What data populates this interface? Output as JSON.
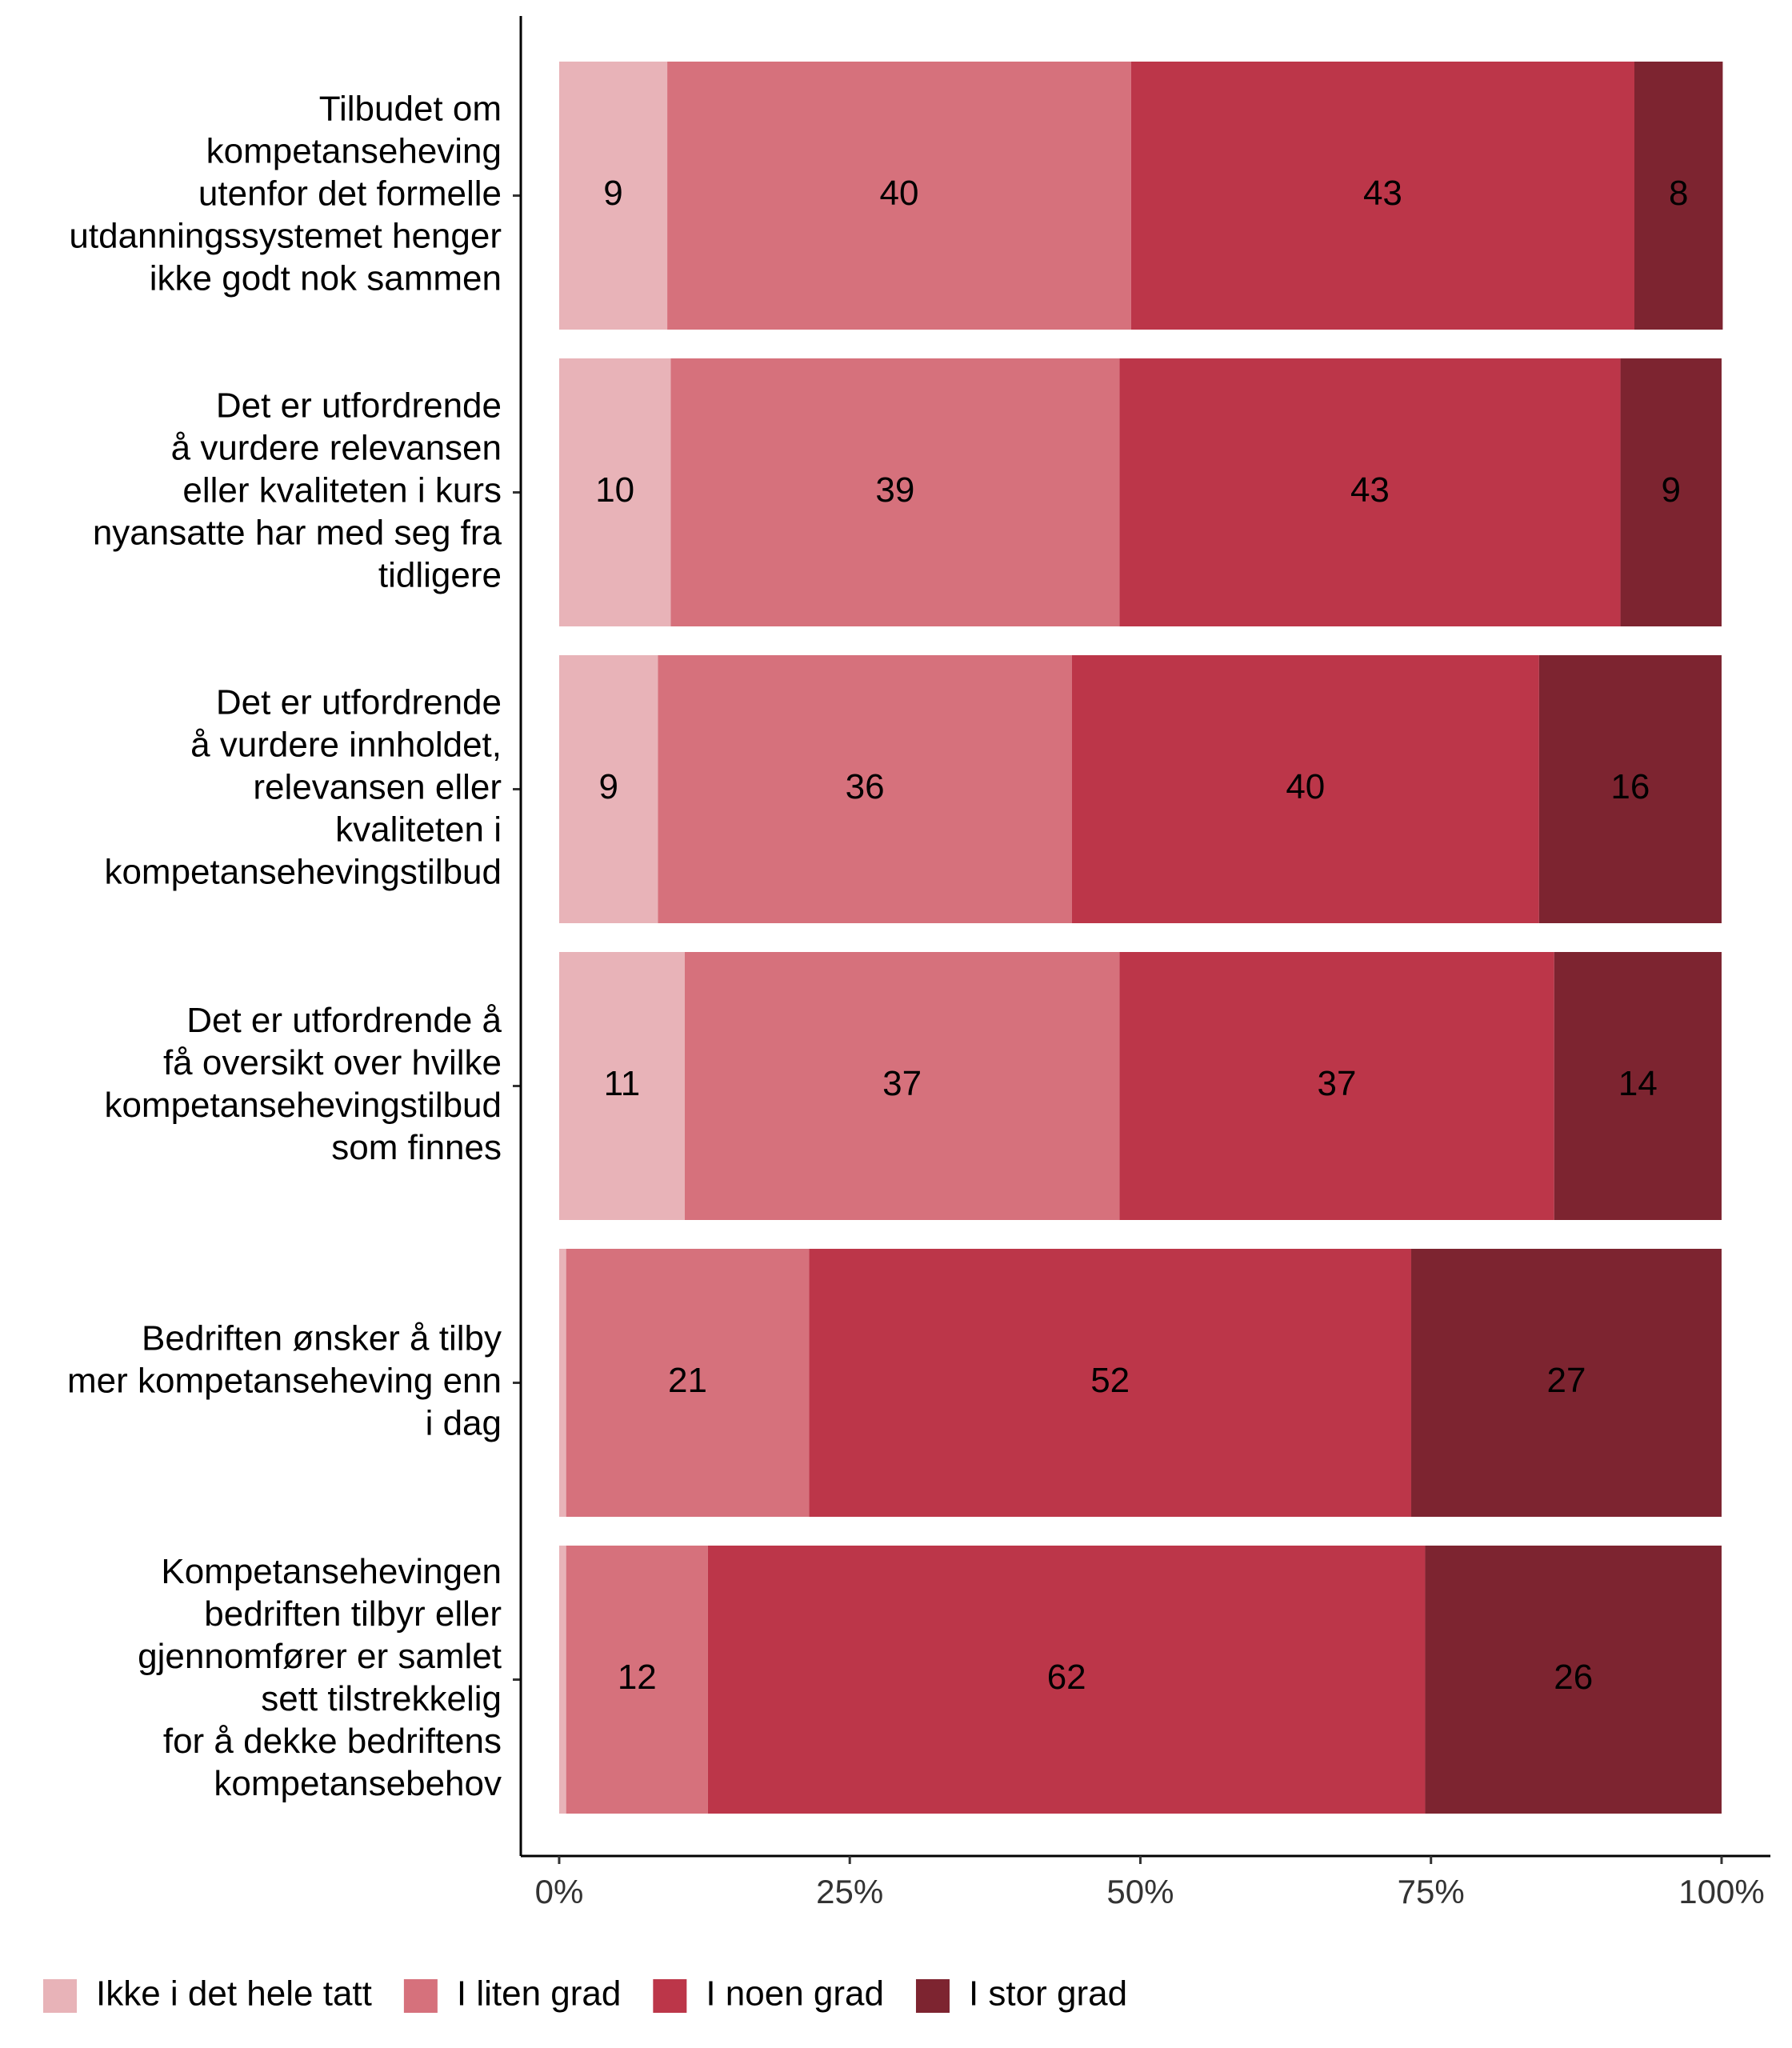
{
  "chart_data": {
    "type": "stacked-bar-horizontal",
    "categories": [
      "Tilbudet om\nkompetanseheving\nutenfor det formelle\nutdanningssystemet henger\nikke godt nok sammen",
      "Det er utfordrende\nå vurdere relevansen\neller kvaliteten i kurs\nnyansatte har med seg fra\ntidligere",
      "Det er utfordrende\nå vurdere innholdet,\nrelevansen eller\nkvaliteten i\nkompetansehevingstilbud",
      "Det er utfordrende å\nfå oversikt over hvilke\nkompetansehevingstilbud\nsom finnes",
      "Bedriften ønsker å tilby\nmer kompetanseheving enn\ni dag",
      "Kompetansehevingen\nbedriften tilbyr eller\ngjennomfører er samlet\nsett tilstrekkelig\nfor å dekke bedriftens\nkompetansebehov"
    ],
    "series": [
      {
        "name": "Ikke i det hele tatt",
        "color": "#e8b3b8",
        "label_color": "#000000",
        "values": [
          9.3,
          9.6,
          8.5,
          10.8,
          0.6,
          0.6
        ],
        "value_labels": [
          "9",
          "10",
          "9",
          "11",
          null,
          null
        ]
      },
      {
        "name": "I liten grad",
        "color": "#d6717c",
        "label_color": "#000000",
        "values": [
          39.9,
          38.6,
          35.6,
          37.4,
          20.9,
          12.2
        ],
        "value_labels": [
          "40",
          "39",
          "36",
          "37",
          "21",
          "12"
        ]
      },
      {
        "name": "I noen grad",
        "color": "#bc3649",
        "label_color": "#ffffff",
        "values": [
          43.3,
          43.1,
          40.2,
          37.4,
          51.8,
          61.7
        ],
        "value_labels": [
          "43",
          "43",
          "40",
          "37",
          "52",
          "62"
        ]
      },
      {
        "name": "I stor grad",
        "color": "#7d2430",
        "label_color": "#ffffff",
        "values": [
          7.6,
          8.7,
          15.7,
          14.4,
          26.7,
          25.5
        ],
        "value_labels": [
          "8",
          "9",
          "16",
          "14",
          "27",
          "26"
        ]
      }
    ],
    "xlim": [
      -3.3,
      104.2
    ],
    "xticks": [
      {
        "value": 0,
        "label": "0%"
      },
      {
        "value": 25,
        "label": "25%"
      },
      {
        "value": 50,
        "label": "50%"
      },
      {
        "value": 75,
        "label": "75%"
      },
      {
        "value": 100,
        "label": "100%"
      }
    ],
    "legend": "bottom-left"
  }
}
